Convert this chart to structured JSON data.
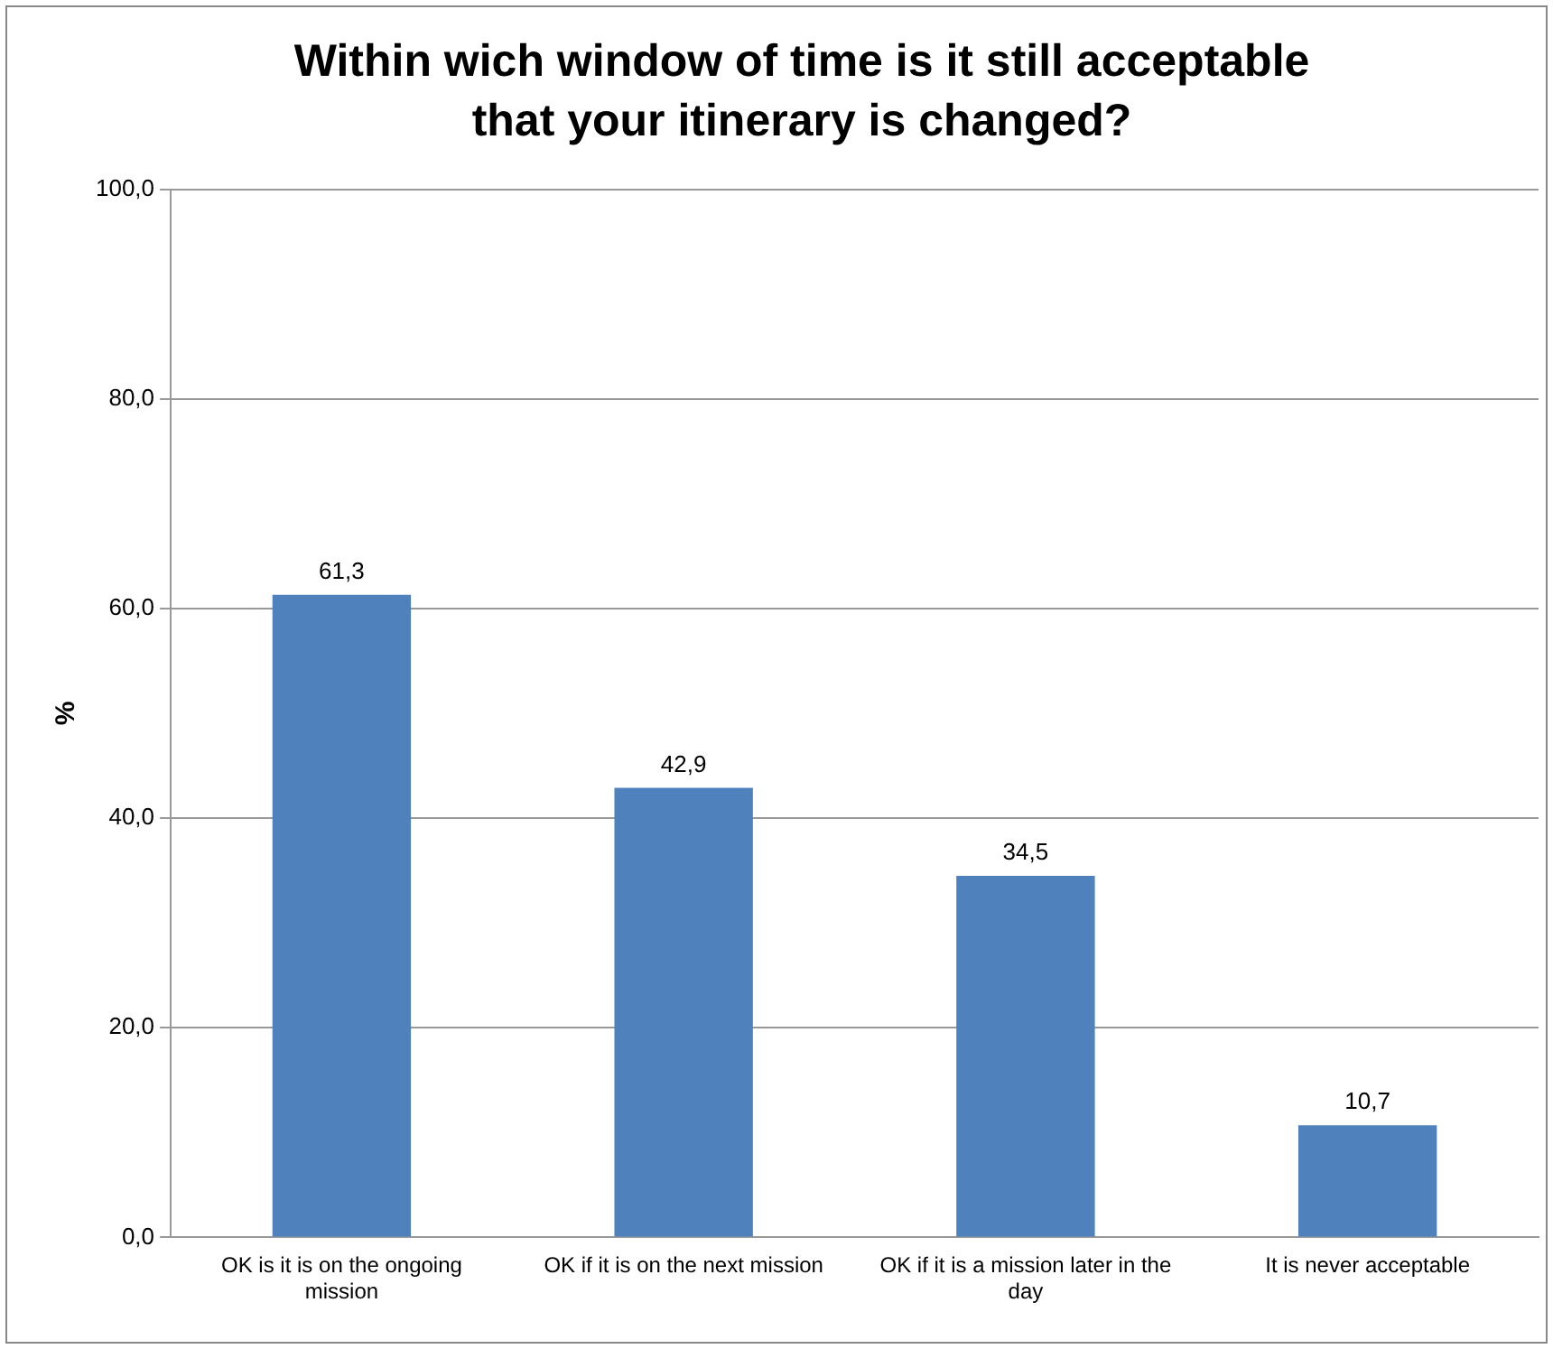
{
  "chart_data": {
    "type": "bar",
    "title": "Within wich window of time is it still acceptable that your itinerary is changed?",
    "ylabel": "%",
    "categories": [
      "OK is it is on the ongoing mission",
      "OK if it is on the next mission",
      "OK if it is a mission later in the day",
      "It is never acceptable"
    ],
    "values": [
      61.3,
      42.9,
      34.5,
      10.7
    ],
    "color": "#4f81bd",
    "value_labels": [
      "61,3",
      "42,9",
      "34,5",
      "10,7"
    ],
    "ylim": [
      0,
      100
    ],
    "yticks": [
      {
        "value": 0,
        "label": "0,0"
      },
      {
        "value": 20,
        "label": "20,0"
      },
      {
        "value": 40,
        "label": "40,0"
      },
      {
        "value": 60,
        "label": "60,0"
      },
      {
        "value": 80,
        "label": "80,0"
      },
      {
        "value": 100,
        "label": "100,0"
      }
    ],
    "grid": "y",
    "legend": false
  }
}
